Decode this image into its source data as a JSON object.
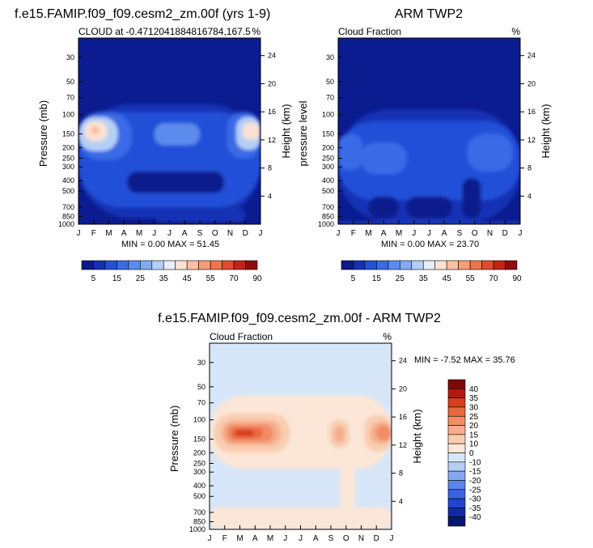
{
  "colors": {
    "frame": "#000000",
    "cloud_scale": [
      "#0a1a8c",
      "#1530b4",
      "#2450d8",
      "#3a6ae6",
      "#5b8bee",
      "#82aaf2",
      "#b4cff6",
      "#e6eef9",
      "#fbe2d2",
      "#f8c1a3",
      "#f59d79",
      "#ef7450",
      "#e34a2f",
      "#c42218",
      "#8e0d0d"
    ],
    "diff_scale": [
      "#08166e",
      "#1228a8",
      "#2144cc",
      "#3c62dc",
      "#5c86ea",
      "#86a8f0",
      "#b6cdf4",
      "#d6e6f8",
      "#fce6d7",
      "#f9cdb1",
      "#f6ae8b",
      "#f18d66",
      "#e86840",
      "#d4401f",
      "#b01a10",
      "#7c0808"
    ]
  },
  "charts": [
    {
      "id": "model",
      "title": "f.e15.FAMIP.f09_f09.cesm2_zm.00f (yrs 1-9)",
      "left_label": "CLOUD at -0.4712041884816784,167.5",
      "right_label": "%",
      "ylabel_left": "Pressure (mb)",
      "ylabel_right": "Height (km)",
      "minmax": "MIN =   0.00 MAX =  51.45",
      "background": "#0b1c90",
      "blobs": [
        {
          "m": [
            0,
            12
          ],
          "p": [
            80,
            880
          ],
          "c": "#1530b4"
        },
        {
          "m": [
            0,
            12
          ],
          "p": [
            95,
            700
          ],
          "c": "#2450d8"
        },
        {
          "m": [
            0,
            3.5
          ],
          "p": [
            95,
            260
          ],
          "c": "#3a6ae6"
        },
        {
          "m": [
            9.8,
            12
          ],
          "p": [
            95,
            250
          ],
          "c": "#3a6ae6"
        },
        {
          "m": [
            0,
            2.6
          ],
          "p": [
            105,
            215
          ],
          "c": "#b4cff6"
        },
        {
          "m": [
            10.4,
            12
          ],
          "p": [
            105,
            210
          ],
          "c": "#b4cff6"
        },
        {
          "m": [
            0.4,
            1.9
          ],
          "p": [
            115,
            175
          ],
          "c": "#fbe2d2"
        },
        {
          "m": [
            10.8,
            12
          ],
          "p": [
            118,
            170
          ],
          "c": "#fbe2d2"
        },
        {
          "m": [
            0.8,
            1.4
          ],
          "p": [
            128,
            150
          ],
          "c": "#f8c1a3"
        },
        {
          "m": [
            5,
            8
          ],
          "p": [
            120,
            190
          ],
          "c": "#5b8bee"
        },
        {
          "m": [
            3.2,
            9.6
          ],
          "p": [
            330,
            520
          ],
          "c": "#0a1a8c"
        },
        {
          "m": [
            5,
            11
          ],
          "p": [
            720,
            960
          ],
          "c": "#1530b4"
        }
      ],
      "xticks": [
        "J",
        "F",
        "M",
        "A",
        "M",
        "J",
        "J",
        "A",
        "S",
        "O",
        "N",
        "D",
        "J"
      ],
      "pticks": [
        30,
        50,
        70,
        100,
        150,
        200,
        250,
        300,
        400,
        500,
        700,
        850,
        1000
      ],
      "hticks": [
        4,
        8,
        12,
        16,
        20,
        24
      ]
    },
    {
      "id": "obs",
      "title": "ARM TWP2",
      "left_label": "Cloud Fraction",
      "right_label": "%",
      "ylabel_left": "pressure level",
      "ylabel_right": "Height (km)",
      "minmax": "MIN =   0.00 MAX =  23.70",
      "background": "#0b1c90",
      "blobs": [
        {
          "m": [
            0,
            12
          ],
          "p": [
            90,
            950
          ],
          "c": "#1530b4"
        },
        {
          "m": [
            0,
            12
          ],
          "p": [
            115,
            600
          ],
          "c": "#2450d8"
        },
        {
          "m": [
            0,
            1.6
          ],
          "p": [
            150,
            320
          ],
          "c": "#3a6ae6"
        },
        {
          "m": [
            1.5,
            4.5
          ],
          "p": [
            180,
            350
          ],
          "c": "#3a6ae6"
        },
        {
          "m": [
            8.5,
            11.5
          ],
          "p": [
            150,
            330
          ],
          "c": "#3a6ae6"
        },
        {
          "m": [
            2,
            4
          ],
          "p": [
            560,
            880
          ],
          "c": "#0a1a8c"
        },
        {
          "m": [
            4.5,
            7.5
          ],
          "p": [
            560,
            880
          ],
          "c": "#0a1a8c"
        },
        {
          "m": [
            8.2,
            9.4
          ],
          "p": [
            380,
            880
          ],
          "c": "#0a1a8c"
        },
        {
          "m": [
            0,
            12
          ],
          "p": [
            960,
            1000
          ],
          "c": "#2450d8"
        }
      ],
      "xticks": [
        "J",
        "F",
        "M",
        "A",
        "M",
        "J",
        "J",
        "A",
        "S",
        "O",
        "N",
        "D",
        "J"
      ],
      "pticks": [
        30,
        50,
        70,
        100,
        150,
        200,
        250,
        300,
        400,
        500,
        700,
        850,
        1000
      ],
      "hticks": [
        4,
        8,
        12,
        16,
        20,
        24
      ]
    },
    {
      "id": "diff",
      "title": "f.e15.FAMIP.f09_f09.cesm2_zm.00f - ARM TWP2",
      "left_label": "Cloud Fraction",
      "right_label": "%",
      "ylabel_left": "Pressure (mb)",
      "ylabel_right": "Height (km)",
      "minmax": "MIN =  -7.52 MAX =  35.76",
      "background": "#d6e6f8",
      "blobs": [
        {
          "m": [
            0,
            12
          ],
          "p": [
            60,
            280
          ],
          "c": "#fce6d7"
        },
        {
          "m": [
            0,
            12
          ],
          "p": [
            630,
            1000
          ],
          "c": "#fce6d7"
        },
        {
          "m": [
            8.6,
            9.6
          ],
          "p": [
            260,
            650
          ],
          "c": "#fce6d7"
        },
        {
          "m": [
            0.3,
            5.3
          ],
          "p": [
            88,
            200
          ],
          "c": "#f9cdb1"
        },
        {
          "m": [
            10.2,
            12
          ],
          "p": [
            90,
            195
          ],
          "c": "#f9cdb1"
        },
        {
          "m": [
            7.9,
            9.2
          ],
          "p": [
            100,
            180
          ],
          "c": "#f9cdb1"
        },
        {
          "m": [
            0.8,
            4.7
          ],
          "p": [
            102,
            170
          ],
          "c": "#f6ae8b"
        },
        {
          "m": [
            10.6,
            12
          ],
          "p": [
            105,
            165
          ],
          "c": "#f6ae8b"
        },
        {
          "m": [
            8.2,
            8.9
          ],
          "p": [
            115,
            160
          ],
          "c": "#f6ae8b"
        },
        {
          "m": [
            1.1,
            4.2
          ],
          "p": [
            110,
            160
          ],
          "c": "#f18d66"
        },
        {
          "m": [
            11,
            12
          ],
          "p": [
            112,
            155
          ],
          "c": "#f18d66"
        },
        {
          "m": [
            1.4,
            3.5
          ],
          "p": [
            118,
            148
          ],
          "c": "#e86840"
        },
        {
          "m": [
            1.7,
            2.9
          ],
          "p": [
            123,
            142
          ],
          "c": "#d4401f"
        }
      ],
      "xticks": [
        "J",
        "F",
        "M",
        "A",
        "M",
        "J",
        "J",
        "A",
        "S",
        "O",
        "N",
        "D",
        "J"
      ],
      "pticks": [
        30,
        50,
        70,
        100,
        150,
        200,
        250,
        300,
        400,
        500,
        700,
        850,
        1000
      ],
      "hticks": [
        4,
        8,
        12,
        16,
        20,
        24
      ]
    }
  ],
  "cloud_colorbar": {
    "labels": [
      "5",
      "15",
      "25",
      "35",
      "45",
      "55",
      "70",
      "90"
    ]
  },
  "diff_colorbar": {
    "labels": [
      "40",
      "35",
      "30",
      "25",
      "20",
      "15",
      "10",
      "0",
      "-10",
      "-15",
      "-20",
      "-25",
      "-30",
      "-35",
      "-40"
    ]
  },
  "chart_data": [
    {
      "type": "heatmap",
      "title": "f.e15.FAMIP.f09_f09.cesm2_zm.00f (yrs 1-9)",
      "subtitle": "CLOUD at -0.4712041884816784,167.5",
      "units": "%",
      "xlabel": "",
      "ylabel": "Pressure (mb)",
      "ylabel_right": "Height (km)",
      "x": [
        "J",
        "F",
        "M",
        "A",
        "M",
        "J",
        "J",
        "A",
        "S",
        "O",
        "N",
        "D",
        "J"
      ],
      "y_pressure_ticks": [
        30,
        50,
        70,
        100,
        150,
        200,
        250,
        300,
        400,
        500,
        700,
        850,
        1000
      ],
      "height_ticks": [
        4,
        8,
        12,
        16,
        20,
        24
      ],
      "ylim": [
        1000,
        20
      ],
      "min": 0.0,
      "max": 51.45,
      "features": "cloud-fraction maximum near 120-150 mb in Jan-Feb and Dec (up to ~45-50%), minimum 300-500 mb Apr-Oct"
    },
    {
      "type": "heatmap",
      "title": "ARM TWP2",
      "subtitle": "Cloud Fraction",
      "units": "%",
      "ylabel": "pressure level",
      "ylabel_right": "Height (km)",
      "x": [
        "J",
        "F",
        "M",
        "A",
        "M",
        "J",
        "J",
        "A",
        "S",
        "O",
        "N",
        "D",
        "J"
      ],
      "y_pressure_ticks": [
        30,
        50,
        70,
        100,
        150,
        200,
        250,
        300,
        400,
        500,
        700,
        850,
        1000
      ],
      "height_ticks": [
        4,
        8,
        12,
        16,
        20,
        24
      ],
      "min": 0.0,
      "max": 23.7,
      "features": "cloud fraction mostly 5-20% between 100 and 900 mb"
    },
    {
      "type": "heatmap",
      "title": "f.e15.FAMIP.f09_f09.cesm2_zm.00f - ARM TWP2",
      "subtitle": "Cloud Fraction",
      "units": "%",
      "ylabel": "Pressure (mb)",
      "ylabel_right": "Height (km)",
      "x": [
        "J",
        "F",
        "M",
        "A",
        "M",
        "J",
        "J",
        "A",
        "S",
        "O",
        "N",
        "D",
        "J"
      ],
      "y_pressure_ticks": [
        30,
        50,
        70,
        100,
        150,
        200,
        250,
        300,
        400,
        500,
        700,
        850,
        1000
      ],
      "height_ticks": [
        4,
        8,
        12,
        16,
        20,
        24
      ],
      "min": -7.52,
      "max": 35.76,
      "features": "positive bias up to ~35% near 120-150 mb Jan-Apr and Dec, small negative bias 300-600 mb"
    }
  ]
}
